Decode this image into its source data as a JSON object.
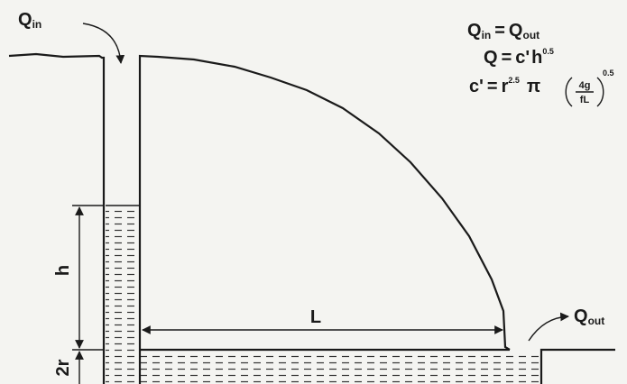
{
  "inflow": {
    "symbol": "Q",
    "subscript": "in"
  },
  "outflow": {
    "symbol": "Q",
    "subscript": "out"
  },
  "equations": [
    [
      "Q",
      "in",
      "=",
      "Q",
      "out"
    ],
    [
      "Q",
      "=",
      "c'",
      "h",
      "0.5"
    ],
    [
      "c'",
      "=",
      "r",
      "2.5",
      "π",
      "4g",
      "fL",
      "0.5"
    ]
  ],
  "dimensions": {
    "height": "h",
    "radius": "2r",
    "length": "L"
  }
}
